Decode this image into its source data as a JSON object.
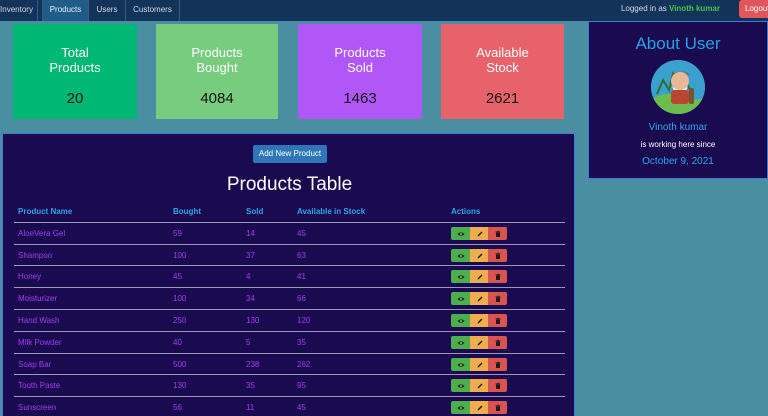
{
  "navbar": {
    "tabs": [
      {
        "label": "Inventory",
        "active": false
      },
      {
        "label": "Products",
        "active": true
      },
      {
        "label": "Users",
        "active": false
      },
      {
        "label": "Customers",
        "active": false
      }
    ],
    "logged_in_prefix": "Logged in as",
    "username": "Vinoth kumar",
    "logout_label": "Logout"
  },
  "stats": [
    {
      "label": "Total Products",
      "value": "20",
      "color": "#00b773"
    },
    {
      "label": "Products Bought",
      "value": "4084",
      "color": "#77cd7d"
    },
    {
      "label": "Products Sold",
      "value": "1463",
      "color": "#b157f7"
    },
    {
      "label": "Available Stock",
      "value": "2621",
      "color": "#e8626b"
    }
  ],
  "about": {
    "title": "About User",
    "avatar_icon": "avatar-icon",
    "name": "Vinoth kumar",
    "since_text": "is working here since",
    "date": "October 9, 2021"
  },
  "products_table": {
    "add_button_label": "Add New Product",
    "title": "Products Table",
    "columns": [
      "Product Name",
      "Bought",
      "Sold",
      "Available in Stock",
      "Actions"
    ],
    "rows": [
      {
        "name": "AloeVera Gel",
        "bought": "59",
        "sold": "14",
        "available": "45"
      },
      {
        "name": "Shampoo",
        "bought": "100",
        "sold": "37",
        "available": "63"
      },
      {
        "name": "Honey",
        "bought": "45",
        "sold": "4",
        "available": "41"
      },
      {
        "name": "Moisturizer",
        "bought": "100",
        "sold": "34",
        "available": "66"
      },
      {
        "name": "Hand Wash",
        "bought": "250",
        "sold": "130",
        "available": "120"
      },
      {
        "name": "Milk Powder",
        "bought": "40",
        "sold": "5",
        "available": "35"
      },
      {
        "name": "Soap Bar",
        "bought": "500",
        "sold": "238",
        "available": "262"
      },
      {
        "name": "Tooth Paste",
        "bought": "130",
        "sold": "35",
        "available": "95"
      },
      {
        "name": "Sunscreen",
        "bought": "56",
        "sold": "11",
        "available": "45"
      }
    ],
    "action_icons": [
      "eye-icon",
      "pencil-icon",
      "trash-icon"
    ]
  },
  "colors": {
    "navbar": "#12335a",
    "page_background": "#4a8ea1",
    "panel_background": "#1a0b50",
    "accent_blue": "#2ca6ea",
    "product_text": "#a43df0",
    "logout": "#e0565b"
  }
}
